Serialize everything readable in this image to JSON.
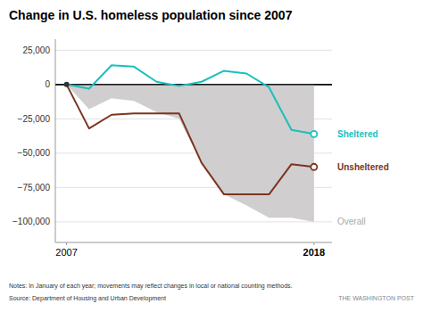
{
  "chart_data": {
    "type": "line",
    "title": "Change in U.S. homeless population since 2007",
    "x": [
      2007,
      2008,
      2009,
      2010,
      2011,
      2012,
      2013,
      2014,
      2015,
      2016,
      2017,
      2018
    ],
    "series": [
      {
        "name": "Overall",
        "type": "area",
        "color": "#d0cece",
        "values": [
          0,
          -18000,
          -10000,
          -12000,
          -20000,
          -25000,
          -57000,
          -80000,
          -88000,
          -97000,
          -97000,
          -100000
        ]
      },
      {
        "name": "Sheltered",
        "type": "line",
        "color": "#1abfbf",
        "values": [
          0,
          -3000,
          14000,
          13000,
          2000,
          -1000,
          2000,
          10000,
          8000,
          -2000,
          -33000,
          -36000
        ]
      },
      {
        "name": "Unsheltered",
        "type": "line",
        "color": "#7b3520",
        "values": [
          0,
          -32000,
          -22000,
          -21000,
          -21000,
          -21000,
          -57000,
          -80000,
          -80000,
          -80000,
          -58000,
          -60000
        ]
      }
    ],
    "xlim": [
      2006.5,
      2018.8
    ],
    "xticks": [
      2007,
      2018
    ],
    "ylim": [
      -115000,
      33000
    ],
    "yticks": [
      {
        "value": 25000,
        "label": "25,000"
      },
      0,
      {
        "value": -25000,
        "label": "−25,000"
      },
      {
        "value": -50000,
        "label": "−50,000"
      },
      {
        "value": -75000,
        "label": "−75,000"
      },
      {
        "value": -100000,
        "label": "−100,000"
      }
    ],
    "grid": true,
    "annotations": [
      "Notes: In January of each year; movements may reflect changes in local or national counting methods.",
      "Source: Department of Housing and Urban Development",
      "THE WASHINGTON POST"
    ]
  }
}
